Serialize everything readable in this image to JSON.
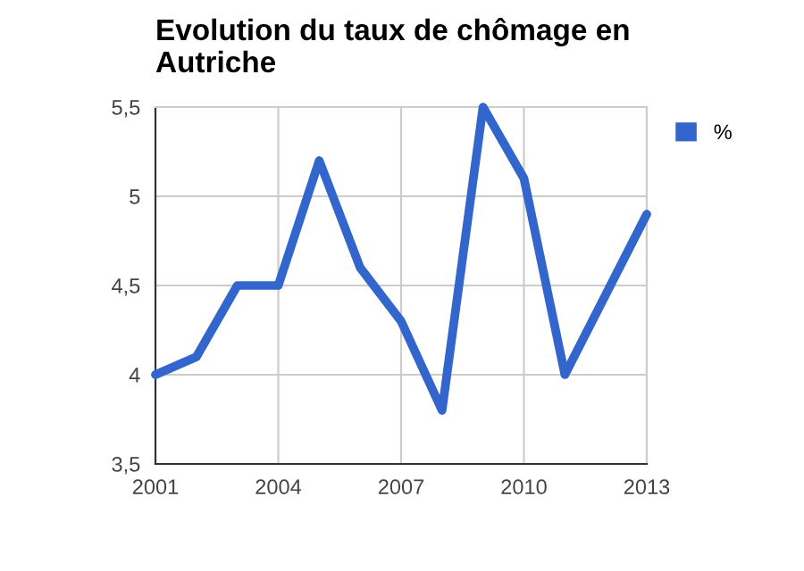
{
  "chart_data": {
    "type": "line",
    "title": "Evolution du taux de chômage en\nAutriche",
    "x": [
      2001,
      2002,
      2003,
      2004,
      2005,
      2006,
      2007,
      2008,
      2009,
      2010,
      2011,
      2012,
      2013
    ],
    "series": [
      {
        "name": "%",
        "color": "#3366cc",
        "values": [
          4.0,
          4.1,
          4.5,
          4.5,
          5.2,
          4.6,
          4.3,
          3.8,
          5.5,
          5.1,
          4.0,
          4.45,
          4.9
        ]
      }
    ],
    "xlim": [
      2001,
      2013
    ],
    "xticks": [
      2001,
      2004,
      2007,
      2010,
      2013
    ],
    "ylim": [
      3.5,
      5.5
    ],
    "yticks": [
      {
        "value": 3.5,
        "label": "3,5"
      },
      4,
      {
        "value": 4.5,
        "label": "4,5"
      },
      5,
      {
        "value": 5.5,
        "label": "5,5"
      }
    ],
    "grid": true,
    "legend": "top right",
    "marker": "none",
    "line_style": "solid"
  }
}
